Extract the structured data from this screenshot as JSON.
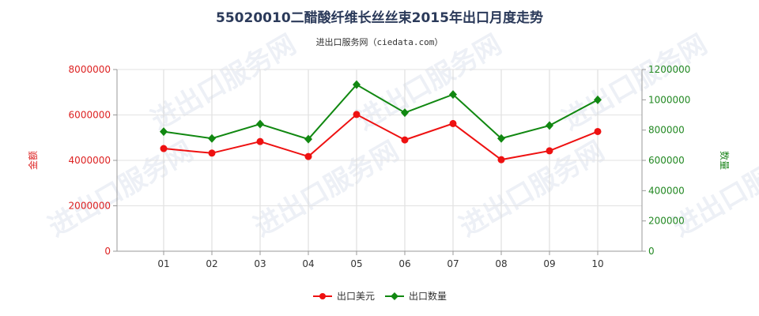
{
  "chart_data": {
    "type": "line",
    "title": "55020010二醋酸纤维长丝丝束2015年出口月度走势",
    "subtitle": "进出口服务网（ciedata.com）",
    "watermark": "进出口服务网",
    "categories": [
      "01",
      "02",
      "03",
      "04",
      "05",
      "06",
      "07",
      "08",
      "09",
      "10"
    ],
    "y_left": {
      "label": "金额",
      "ylim": [
        0,
        8000000
      ],
      "ticks": [
        "0",
        "2000000",
        "4000000",
        "6000000",
        "8000000"
      ],
      "color": "#dd2222"
    },
    "y_right": {
      "label": "数量",
      "ylim": [
        0,
        1200000
      ],
      "ticks": [
        "0",
        "200000",
        "400000",
        "600000",
        "800000",
        "1000000",
        "1200000"
      ],
      "color": "#228822"
    },
    "series": [
      {
        "name": "出口美元",
        "axis": "left",
        "color": "#ee1111",
        "values": [
          4520000,
          4320000,
          4830000,
          4170000,
          6020000,
          4900000,
          5620000,
          4030000,
          4420000,
          5270000
        ]
      },
      {
        "name": "出口数量",
        "axis": "right",
        "color": "#118811",
        "values": [
          790000,
          745000,
          840000,
          740000,
          1100000,
          915000,
          1035000,
          745000,
          830000,
          1000000
        ]
      }
    ],
    "grid": true,
    "legend_position": "bottom"
  }
}
